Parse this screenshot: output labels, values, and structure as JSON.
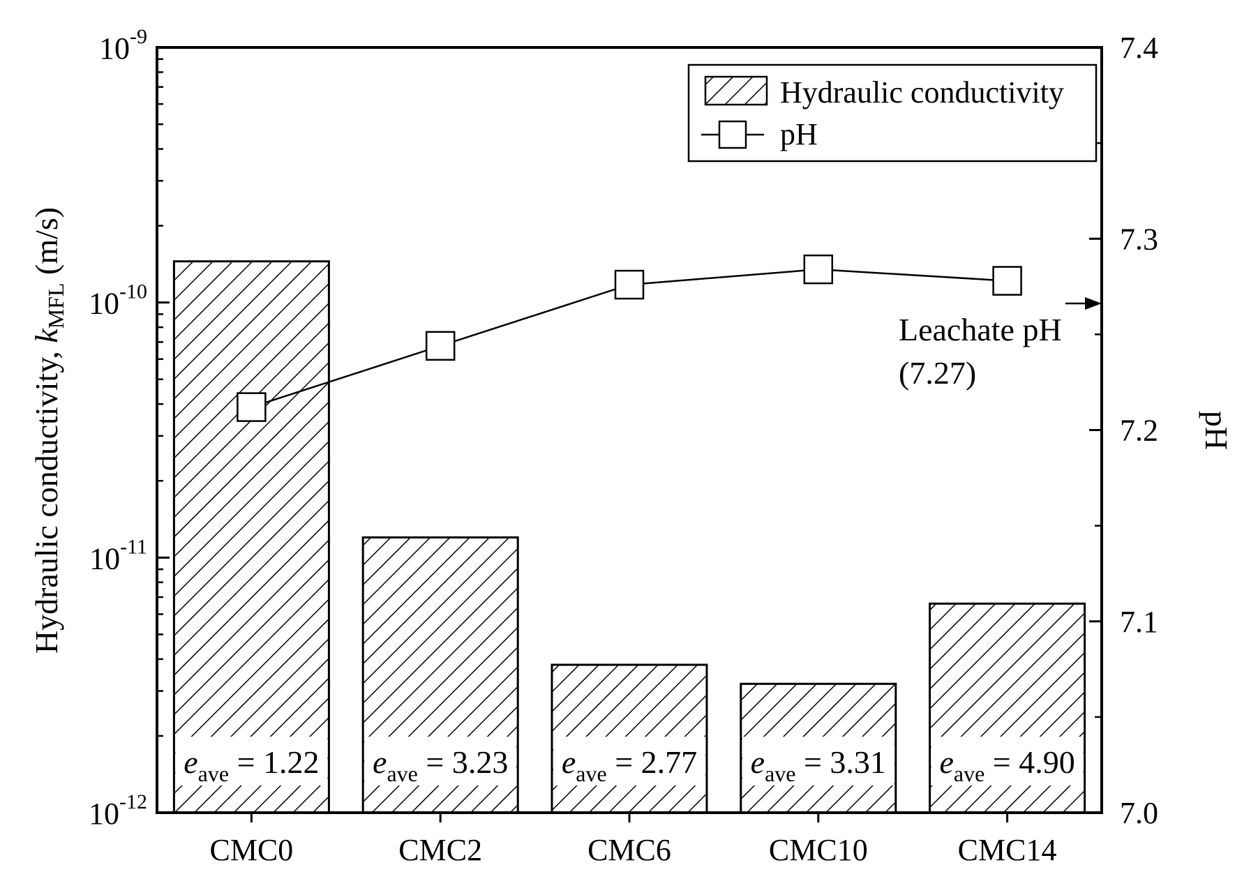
{
  "chart_data": {
    "type": "bar",
    "categories": [
      "CMC0",
      "CMC2",
      "CMC6",
      "CMC10",
      "CMC14"
    ],
    "series": [
      {
        "name": "Hydraulic conductivity",
        "type": "bar",
        "axis": "left",
        "values": [
          1.45e-10,
          1.2e-11,
          3.8e-12,
          3.2e-12,
          6.6e-12
        ]
      },
      {
        "name": "pH",
        "type": "line",
        "axis": "right",
        "marker": "square",
        "values": [
          7.212,
          7.244,
          7.276,
          7.284,
          7.278
        ]
      }
    ],
    "left_axis": {
      "label_main": "Hydraulic conductivity, ",
      "label_var": "k",
      "label_sub": "MFL",
      "label_unit": " (m/s)",
      "scale": "log",
      "ylim": [
        1e-12,
        1e-09
      ],
      "ticks": [
        {
          "value": 1e-09,
          "base": "10",
          "exp": "-9"
        },
        {
          "value": 1e-10,
          "base": "10",
          "exp": "-10"
        },
        {
          "value": 1e-11,
          "base": "10",
          "exp": "-11"
        },
        {
          "value": 1e-12,
          "base": "10",
          "exp": "-12"
        }
      ]
    },
    "right_axis": {
      "label": "pH",
      "scale": "linear",
      "ylim": [
        7.0,
        7.4
      ],
      "ticks": [
        "7.0",
        "7.1",
        "7.2",
        "7.3",
        "7.4"
      ]
    },
    "bar_labels": [
      {
        "var": "e",
        "sub": "ave",
        "text": " = 1.22"
      },
      {
        "var": "e",
        "sub": "ave",
        "text": " = 3.23"
      },
      {
        "var": "e",
        "sub": "ave",
        "text": " = 2.77"
      },
      {
        "var": "e",
        "sub": "ave",
        "text": " = 3.31"
      },
      {
        "var": "e",
        "sub": "ave",
        "text": " = 4.90"
      }
    ],
    "annotation": {
      "line1": "Leachate pH",
      "line2": "(7.27)",
      "value": 7.27
    },
    "legend": {
      "placement": "top-right",
      "entries": [
        "Hydraulic conductivity",
        "pH"
      ]
    },
    "grid": false
  }
}
